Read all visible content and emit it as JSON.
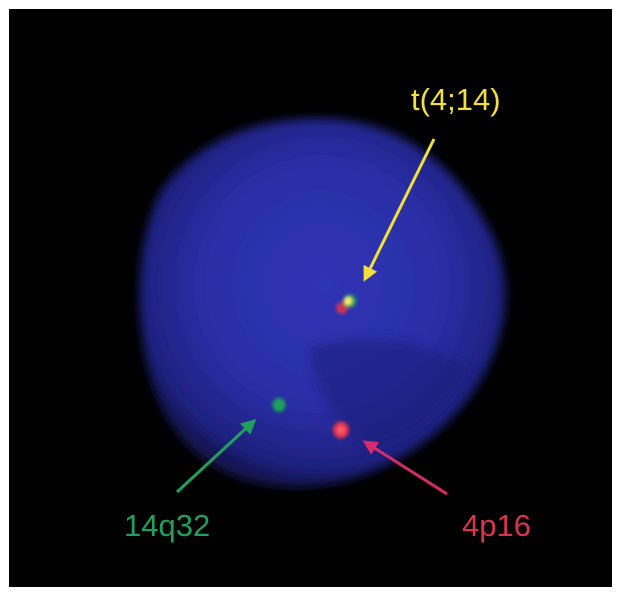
{
  "labels": {
    "fusion": "t(4;14)",
    "green_probe": "14q32",
    "red_probe": "4p16"
  },
  "colors": {
    "background": "#000000",
    "nucleus": "#2a2ea8",
    "fusion": "#f2df3a",
    "green": "#1fa05c",
    "red": "#d8344a",
    "red_arrow": "#d62a6a"
  }
}
